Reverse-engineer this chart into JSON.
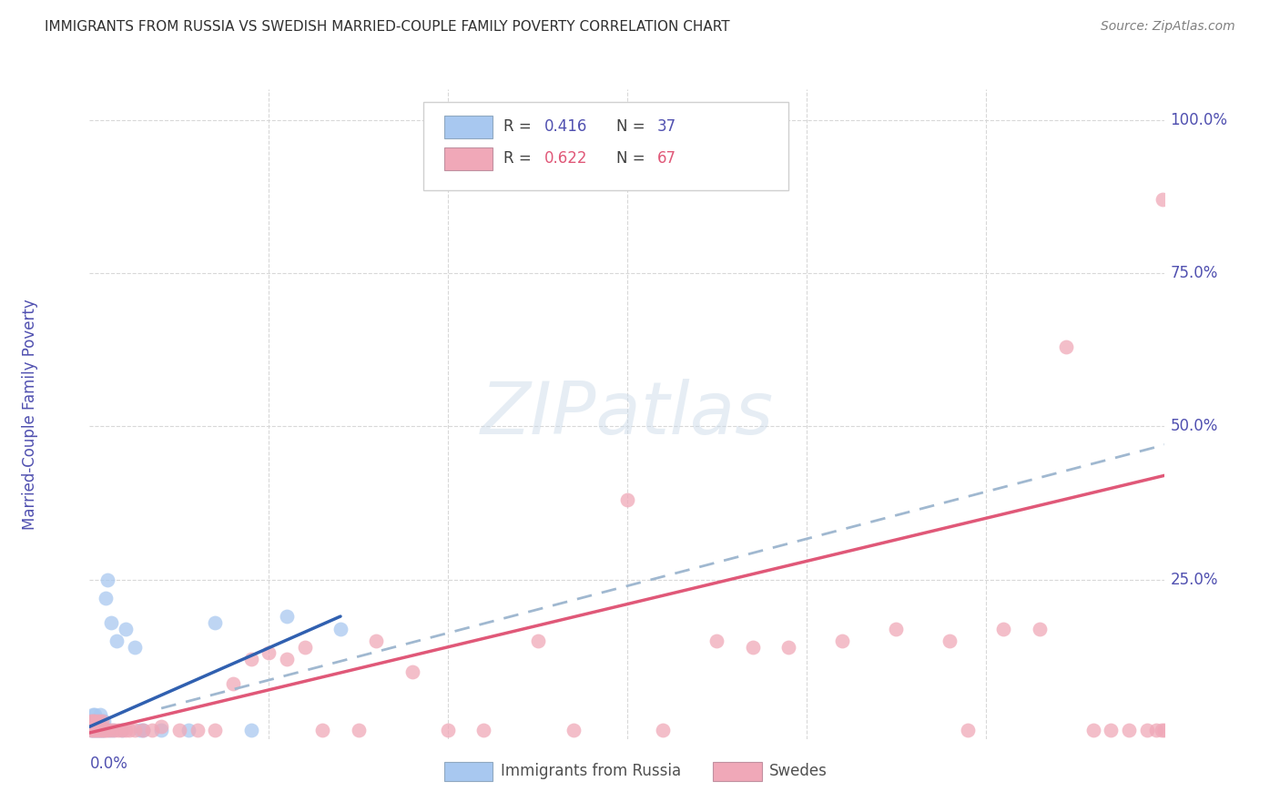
{
  "title": "IMMIGRANTS FROM RUSSIA VS SWEDISH MARRIED-COUPLE FAMILY POVERTY CORRELATION CHART",
  "source": "Source: ZipAtlas.com",
  "ylabel": "Married-Couple Family Poverty",
  "xmin": 0.0,
  "xmax": 0.6,
  "ymin": -0.01,
  "ymax": 1.05,
  "yticks": [
    0.0,
    0.25,
    0.5,
    0.75,
    1.0
  ],
  "ytick_labels": [
    "",
    "25.0%",
    "50.0%",
    "75.0%",
    "100.0%"
  ],
  "watermark_text": "ZIPatlas",
  "blue_scatter_color": "#A8C8F0",
  "pink_scatter_color": "#F0A8B8",
  "blue_line_color": "#3060B0",
  "pink_line_color": "#E05878",
  "dash_line_color": "#A0B8D0",
  "title_color": "#303030",
  "axis_color": "#5050B0",
  "grid_color": "#D8D8D8",
  "source_color": "#808080",
  "legend_box_color": "#D0D0D0",
  "russia_points_x": [
    0.001,
    0.001,
    0.002,
    0.002,
    0.002,
    0.003,
    0.003,
    0.003,
    0.004,
    0.004,
    0.004,
    0.005,
    0.005,
    0.005,
    0.006,
    0.006,
    0.007,
    0.007,
    0.008,
    0.008,
    0.009,
    0.01,
    0.011,
    0.012,
    0.013,
    0.015,
    0.018,
    0.02,
    0.025,
    0.028,
    0.03,
    0.04,
    0.055,
    0.07,
    0.09,
    0.11,
    0.14
  ],
  "russia_points_y": [
    0.005,
    0.01,
    0.005,
    0.02,
    0.03,
    0.005,
    0.01,
    0.03,
    0.005,
    0.01,
    0.02,
    0.005,
    0.01,
    0.02,
    0.005,
    0.03,
    0.005,
    0.01,
    0.005,
    0.02,
    0.22,
    0.25,
    0.005,
    0.18,
    0.005,
    0.15,
    0.005,
    0.17,
    0.14,
    0.005,
    0.005,
    0.005,
    0.005,
    0.18,
    0.005,
    0.19,
    0.17
  ],
  "sweden_points_x": [
    0.001,
    0.001,
    0.001,
    0.002,
    0.002,
    0.002,
    0.003,
    0.003,
    0.003,
    0.004,
    0.004,
    0.005,
    0.005,
    0.005,
    0.006,
    0.006,
    0.007,
    0.007,
    0.008,
    0.009,
    0.01,
    0.012,
    0.014,
    0.016,
    0.018,
    0.02,
    0.022,
    0.025,
    0.03,
    0.035,
    0.04,
    0.05,
    0.06,
    0.07,
    0.08,
    0.09,
    0.1,
    0.11,
    0.12,
    0.13,
    0.15,
    0.16,
    0.18,
    0.2,
    0.22,
    0.25,
    0.27,
    0.3,
    0.32,
    0.35,
    0.37,
    0.39,
    0.42,
    0.45,
    0.48,
    0.49,
    0.51,
    0.53,
    0.545,
    0.56,
    0.57,
    0.58,
    0.59,
    0.595,
    0.598,
    0.599,
    0.6
  ],
  "sweden_points_y": [
    0.005,
    0.01,
    0.02,
    0.005,
    0.01,
    0.02,
    0.005,
    0.01,
    0.02,
    0.005,
    0.01,
    0.005,
    0.01,
    0.02,
    0.005,
    0.01,
    0.005,
    0.02,
    0.005,
    0.005,
    0.005,
    0.005,
    0.005,
    0.005,
    0.005,
    0.005,
    0.005,
    0.005,
    0.005,
    0.005,
    0.01,
    0.005,
    0.005,
    0.005,
    0.08,
    0.12,
    0.13,
    0.12,
    0.14,
    0.005,
    0.005,
    0.15,
    0.1,
    0.005,
    0.005,
    0.15,
    0.005,
    0.38,
    0.005,
    0.15,
    0.14,
    0.14,
    0.15,
    0.17,
    0.15,
    0.005,
    0.17,
    0.17,
    0.63,
    0.005,
    0.005,
    0.005,
    0.005,
    0.005,
    0.005,
    0.87,
    0.005
  ],
  "blue_trendline": [
    0.0,
    0.14,
    0.01,
    0.19
  ],
  "pink_trendline": [
    0.0,
    0.6,
    0.0,
    0.42
  ],
  "dash_trendline": [
    0.04,
    0.6,
    0.04,
    0.47
  ]
}
